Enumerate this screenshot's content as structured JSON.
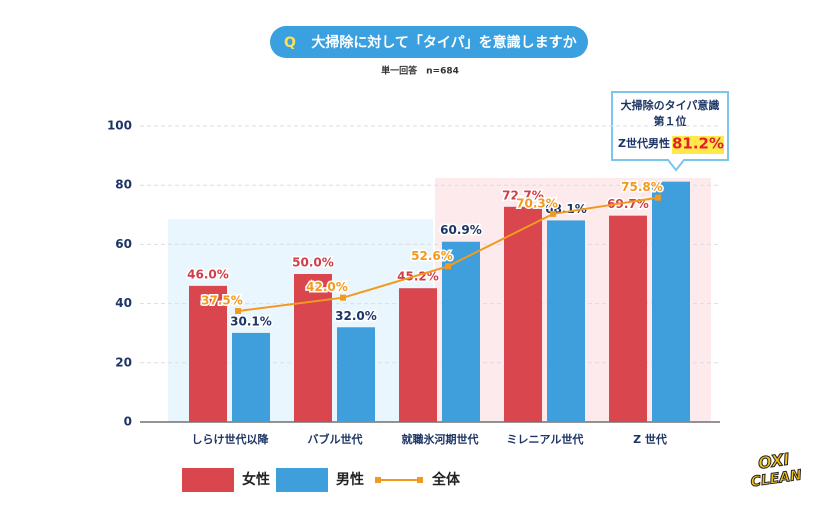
{
  "title_badge": "Q",
  "chart_data": {
    "type": "bar",
    "title": "大掃除に対して「タイパ」を意識しますか",
    "subtitle": "単一回答　n=684",
    "categories": [
      "しらけ世代以降",
      "バブル世代",
      "就職氷河期世代",
      "ミレニアル世代",
      "Z 世代"
    ],
    "series": [
      {
        "name": "女性",
        "color": "#d9464d",
        "label_color": "#cf3f47",
        "values": [
          46.0,
          50.0,
          45.2,
          72.7,
          69.7
        ],
        "value_labels": [
          "46.0%",
          "50.0%",
          "45.2%",
          "72.7%",
          "69.7%"
        ]
      },
      {
        "name": "男性",
        "color": "#3e9fdc",
        "label_color": "#1d3566",
        "values": [
          30.1,
          32.0,
          60.9,
          68.1,
          81.2
        ],
        "value_labels": [
          "30.1%",
          "32.0%",
          "60.9%",
          "68.1%",
          "81.2%"
        ]
      },
      {
        "name": "全体",
        "type": "line",
        "color": "#f29a1f",
        "label_color": "#f29a1f",
        "values": [
          37.5,
          42.0,
          52.6,
          70.3,
          75.8
        ],
        "value_labels": [
          "37.5%",
          "42.0%",
          "52.6%",
          "70.3%",
          "75.8%"
        ]
      }
    ],
    "ylim": [
      0,
      100
    ],
    "yticks": [
      0,
      20,
      40,
      60,
      80,
      100
    ],
    "grid": true,
    "annotation": [
      "大掃除のタイパ意識",
      "第１位",
      "Z世代男性"
    ]
  },
  "logo": [
    "OXI",
    "CLEAN"
  ]
}
